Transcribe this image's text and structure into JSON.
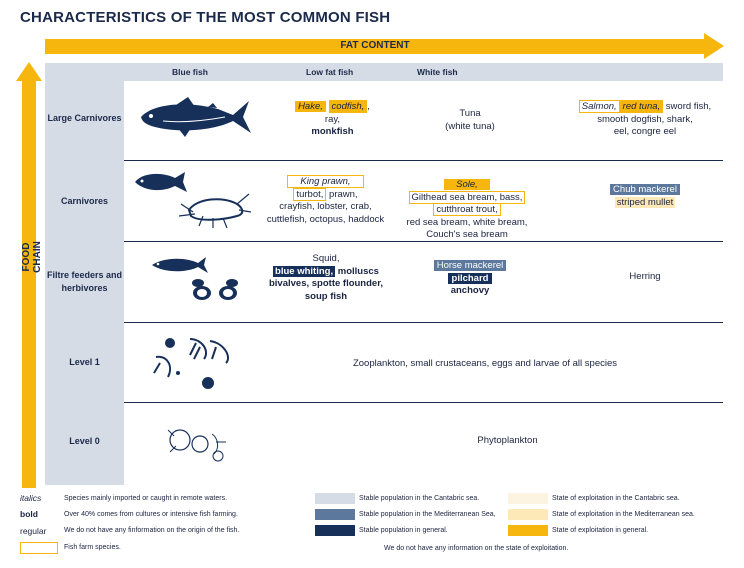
{
  "title": "CHARACTERISTICS OF THE MOST COMMON FISH",
  "fat_axis": "FAT CONTENT",
  "chain_axis": "FOOD CHAIN",
  "columns": [
    "Blue fish",
    "Low fat fish",
    "White fish"
  ],
  "rows": {
    "large": "Large Carnivores",
    "carn": "Carnivores",
    "filter": "Filtre feeders and herbivores",
    "l1": "Level 1",
    "l0": "Level 0"
  },
  "cells": {
    "large_low": {
      "hake": "Hake,",
      "codfish": "codfish,",
      "comma": ",",
      "ray": "ray,",
      "monkfish": "monkfish"
    },
    "large_white": {
      "tuna": "Tuna",
      "white_tuna": "(white tuna)"
    },
    "large_fat": {
      "salmon": "Salmon,",
      "red_tuna": "red tuna,",
      "sword": "sword fish,",
      "dogfish": "smooth dogfish, shark,",
      "eel": "eel, congre eel"
    },
    "carn_low": {
      "king": "King prawn,",
      "turbot": "turbot,",
      "prawn": "prawn,",
      "crayfish": "crayfish, lobster, crab,",
      "cuttle": "cuttlefish, octopus, haddock"
    },
    "carn_white": {
      "sole": "Sole,",
      "gilthead": "Gilthead sea bream, bass,",
      "cutthroat": "cutthroat trout,",
      "redsea": "red sea bream, white bream,",
      "couch": "Couch's sea bream"
    },
    "carn_fat": {
      "chub": "Chub mackerel",
      "striped": "striped mullet"
    },
    "filter_low": {
      "squid": "Squid,",
      "whiting": "blue whiting,",
      "molluscs": "molluscs",
      "bivalves": "bivalves, spotte flounder,",
      "soup": "soup fish"
    },
    "filter_white": {
      "horse": "Horse mackerel",
      "pilchard": "pilchard",
      "anchovy": "anchovy"
    },
    "filter_fat": {
      "herring": "Herring"
    },
    "l1": "Zooplankton, small crustaceans, eggs and larvae of all species",
    "l0": "Phytoplankton"
  },
  "legend": {
    "italics_key": "italics",
    "italics_text": "Species mainly imported or caught in remote waters.",
    "bold_key": "bold",
    "bold_text": "Over 40% comes from cultures or intensive fish farming.",
    "regular_key": "regular",
    "regular_text": "We do not have any finformation on the origin of the fish.",
    "farm_text": "Fish farm species.",
    "pop_cant": "Stable population in the Cantabric sea.",
    "pop_med": "Stable population in the Mediterranean Sea,",
    "pop_gen": "Stable population in general.",
    "exp_cant": "State of exploitation in the Cantabric sea.",
    "exp_med": "State of exploitation in the Mediterranean sea.",
    "exp_gen": "State of exploitation in general.",
    "no_info": "We do not have any information on the state of exploitation."
  },
  "colors": {
    "accent": "#f6b60d",
    "navy": "#17305a",
    "mid_blue": "#5c789c",
    "light_blue": "#d6dce6",
    "pale_orange": "#fde8b8",
    "pale_cream": "#fdf3e1"
  }
}
